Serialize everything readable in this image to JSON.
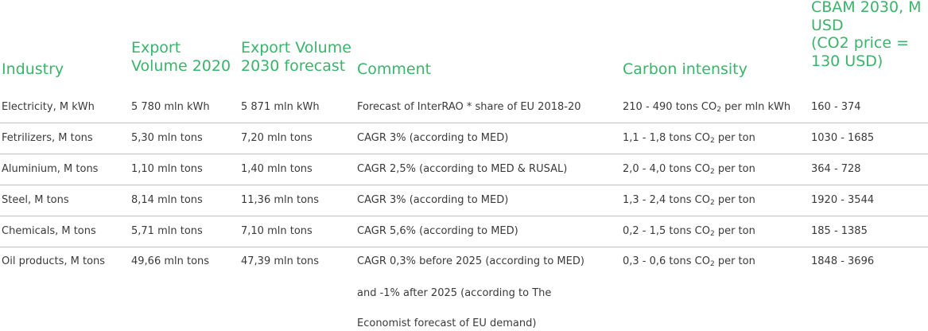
{
  "headers": {
    "industry": "Industry",
    "export_2020_l1": "Export",
    "export_2020_l2": "Volume 2020",
    "export_2030_l1": "Export Volume",
    "export_2030_l2": "2030 forecast",
    "comment": "Comment",
    "carbon": "Carbon intensity",
    "cbam_l1": "CBAM 2030,  M",
    "cbam_l2": "USD",
    "cbam_l3": "(CO2 price =",
    "cbam_l4": "130 USD)"
  },
  "rows": [
    {
      "industry": "Electricity, M kWh",
      "export_2020": "5 780 mln kWh",
      "export_2030": "5 871 mln kWh",
      "comment": [
        "Forecast of InterRAO * share of EU 2018-20"
      ],
      "carbon_pre": "210 - 490 tons CO",
      "carbon_sub": "2",
      "carbon_post": " per mln kWh",
      "cbam": "160 - 374"
    },
    {
      "industry": "Fetrilizers, M tons",
      "export_2020": "5,30 mln tons",
      "export_2030": "7,20 mln tons",
      "comment": [
        "CAGR 3% (according to MED)"
      ],
      "carbon_pre": "1,1 - 1,8 tons CO",
      "carbon_sub": "2",
      "carbon_post": " per ton",
      "cbam": "1030 - 1685"
    },
    {
      "industry": "Aluminium, M tons",
      "export_2020": "1,10 mln tons",
      "export_2030": "1,40 mln tons",
      "comment": [
        "CAGR 2,5% (according to MED & RUSAL)"
      ],
      "carbon_pre": "2,0 - 4,0 tons CO",
      "carbon_sub": "2",
      "carbon_post": " per ton",
      "cbam": "364 - 728"
    },
    {
      "industry": "Steel, M tons",
      "export_2020": "8,14 mln tons",
      "export_2030": "11,36 mln tons",
      "comment": [
        "CAGR 3% (according to MED)"
      ],
      "carbon_pre": "1,3 - 2,4 tons CO",
      "carbon_sub": "2",
      "carbon_post": " per ton",
      "cbam": "1920 - 3544"
    },
    {
      "industry": "Chemicals, M tons",
      "export_2020": "5,71 mln tons",
      "export_2030": "7,10 mln tons",
      "comment": [
        "CAGR 5,6% (according to MED)"
      ],
      "carbon_pre": "0,2 - 1,5 tons CO",
      "carbon_sub": "2",
      "carbon_post": " per ton",
      "cbam": "185 - 1385"
    },
    {
      "industry": "Oil products, M tons",
      "export_2020": "49,66 mln tons",
      "export_2030": "47,39 mln tons",
      "comment": [
        "CAGR 0,3% before 2025 (according to MED)",
        "and -1% after 2025 (according to The",
        "Economist forecast of EU demand)"
      ],
      "carbon_pre": "0,3 - 0,6 tons CO",
      "carbon_sub": "2",
      "carbon_post": " per ton",
      "cbam": "1848 - 3696"
    }
  ]
}
